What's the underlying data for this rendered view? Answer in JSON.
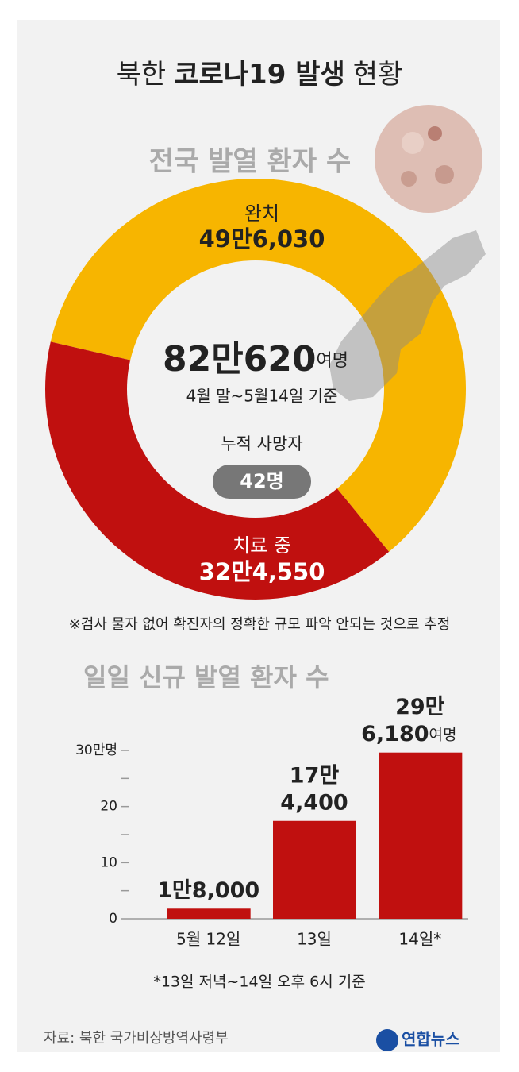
{
  "header": {
    "title_parts": [
      "북한",
      "코로나19 발생",
      "현황"
    ]
  },
  "chart_data": [
    {
      "type": "pie",
      "title": "전국 발열 환자 수",
      "categories": [
        "완치",
        "치료 중"
      ],
      "values": [
        496030,
        324550
      ],
      "value_labels": [
        "49만6,030",
        "32만4,550"
      ],
      "colors": [
        "#f7b500",
        "#c0100f"
      ],
      "total": {
        "value": 820620,
        "label": "82만620"
      },
      "total_unit": "여명",
      "basis": "4월 말~5월14일 기준",
      "deaths_label": "누적 사망자",
      "deaths": {
        "value": 42,
        "label": "42명"
      },
      "note": "※검사 물자 없어 확진자의 정확한 규모 파악 안되는 것으로 추정"
    },
    {
      "type": "bar",
      "title": "일일 신규 발열 환자 수",
      "categories": [
        "5월 12일",
        "13일",
        "14일*"
      ],
      "values": [
        1.8,
        17.44,
        29.618
      ],
      "value_labels": [
        [
          "1만8,000"
        ],
        [
          "17만",
          "4,400"
        ],
        [
          "29만",
          "6,180"
        ]
      ],
      "last_label_unit": "여명",
      "color": "#c0100f",
      "ylim": [
        0,
        30
      ],
      "yticks": [
        0,
        10,
        20,
        {
          "value": 30,
          "label": "30만명"
        }
      ],
      "minor_yticks": [
        5,
        15,
        25
      ],
      "note": "*13일 저녁~14일 오후 6시 기준"
    }
  ],
  "footer": {
    "source": "자료: 북한 국가비상방역사령부",
    "logo": "연합뉴스"
  }
}
